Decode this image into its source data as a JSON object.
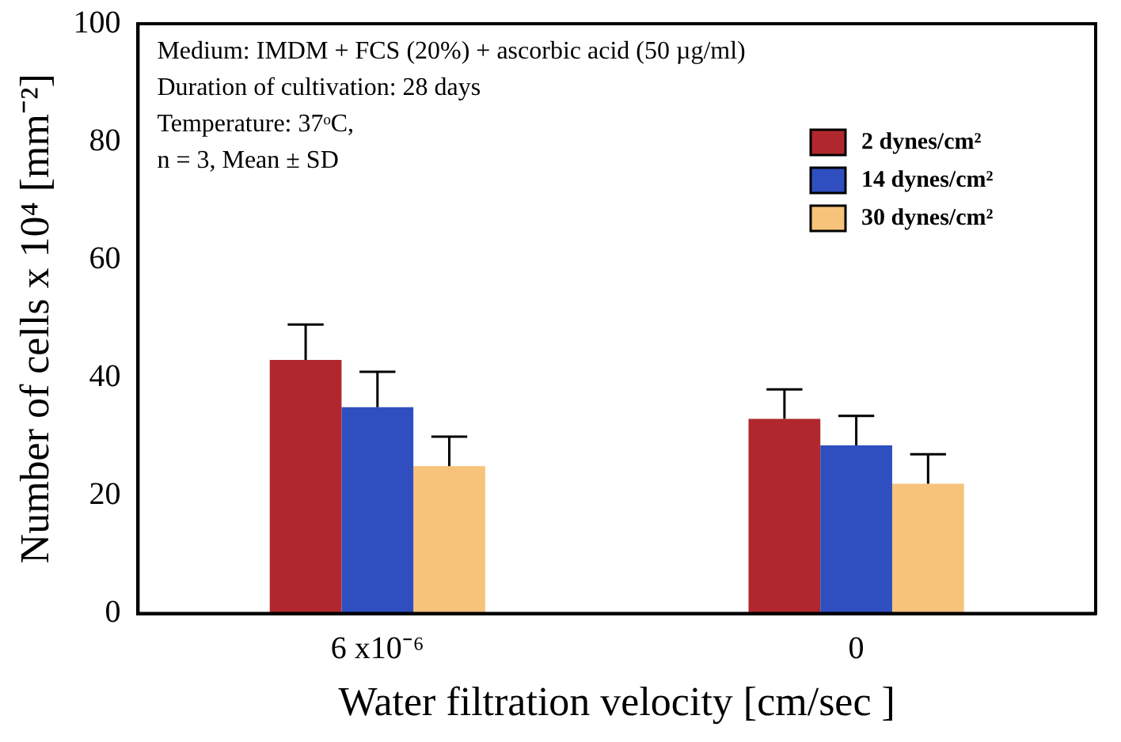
{
  "chart_data": {
    "type": "bar",
    "xlabel": "Water filtration velocity [cm/sec ]",
    "ylabel": "Number of cells x 10⁴ [mm⁻²]",
    "categories": [
      "6 x10⁻⁶",
      "0"
    ],
    "series": [
      {
        "name": "2 dynes/cm²",
        "color": "#b0282e",
        "values": [
          43,
          33
        ],
        "errors": [
          [
            43,
            49
          ],
          [
            33,
            38
          ]
        ]
      },
      {
        "name": "14 dynes/cm²",
        "color": "#2f4fc0",
        "values": [
          35,
          28.5
        ],
        "errors": [
          [
            35,
            41
          ],
          [
            28.5,
            33.5
          ]
        ]
      },
      {
        "name": "30 dynes/cm²",
        "color": "#f7c27a",
        "values": [
          25,
          22
        ],
        "errors": [
          [
            25,
            30
          ],
          [
            22,
            27
          ]
        ]
      }
    ],
    "ylim": [
      0,
      100
    ],
    "yticks": [
      0,
      20,
      40,
      60,
      80,
      100
    ],
    "legend": "top right",
    "annotations": [
      "Medium: IMDM + FCS (20%) + ascorbic acid (50 µg/ml)",
      "Duration of cultivation: 28 days",
      "Temperature: 37ᵒC,",
      "n = 3, Mean ± SD"
    ]
  }
}
